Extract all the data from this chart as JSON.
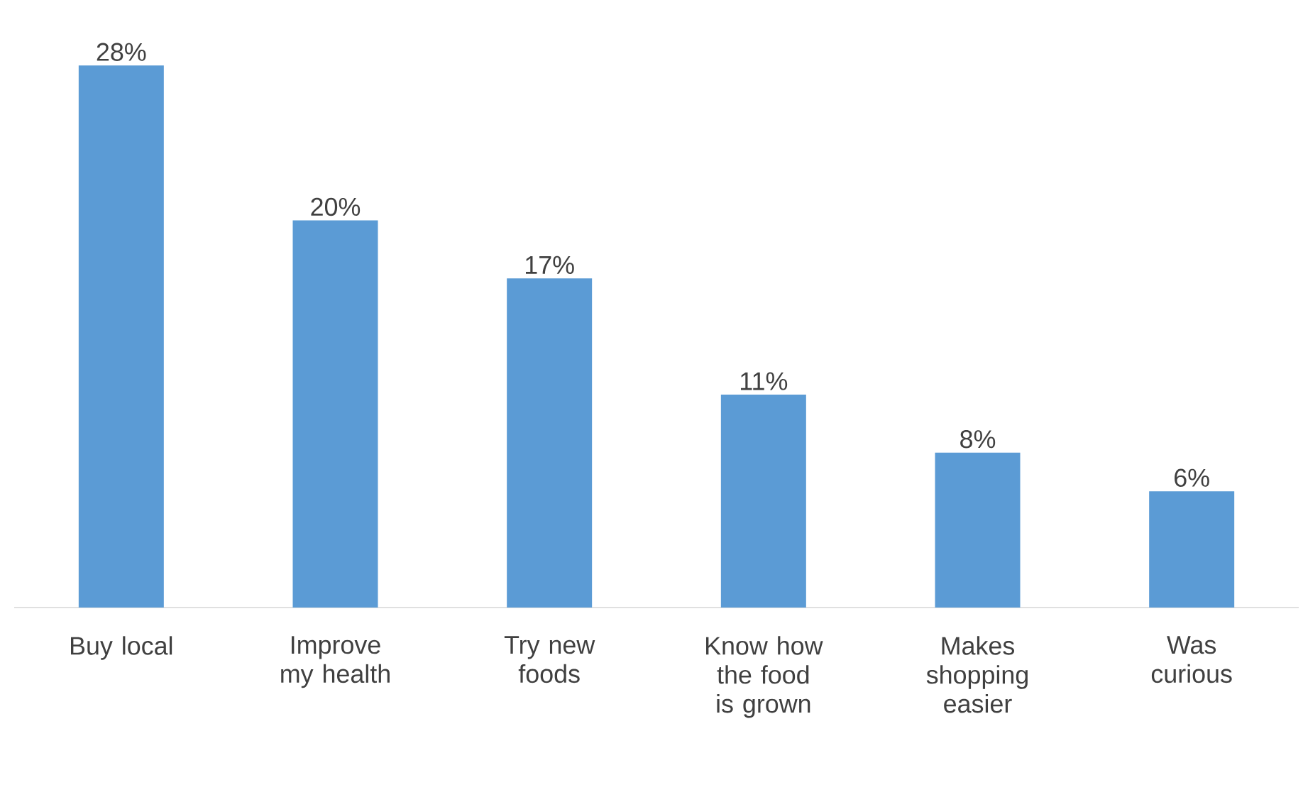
{
  "chart_data": {
    "type": "bar",
    "categories": [
      "Buy local",
      "Improve my health",
      "Try new foods",
      "Know how the food is grown",
      "Makes shopping easier",
      "Was curious"
    ],
    "values": [
      28,
      20,
      17,
      11,
      8,
      6
    ],
    "value_labels": [
      "28%",
      "20%",
      "17%",
      "11%",
      "8%",
      "6%"
    ],
    "color": "#5b9bd5"
  }
}
